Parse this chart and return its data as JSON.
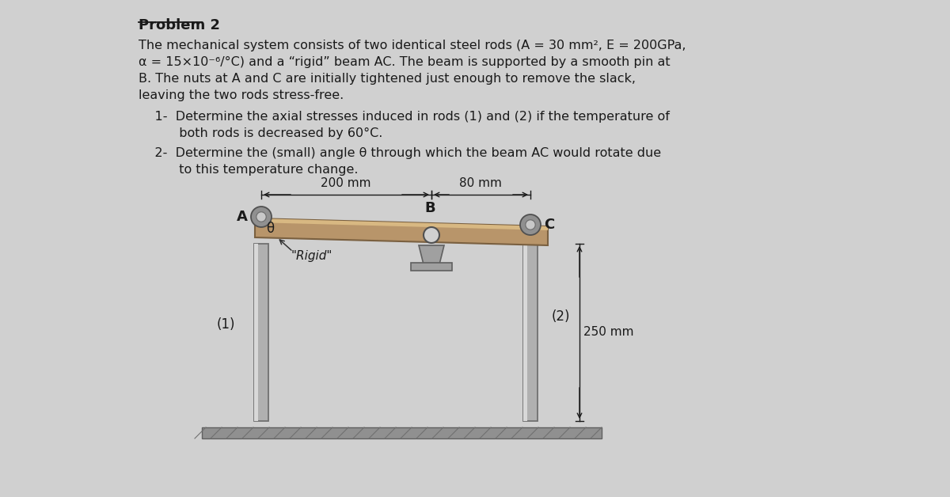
{
  "title": "Problem 2",
  "bg_color": "#d0d0d0",
  "text_color": "#1a1a1a",
  "para1_lines": [
    "The mechanical system consists of two identical steel rods (A = 30 mm², E = 200GPa,",
    "α = 15×10⁻⁶/°C) and a “rigid” beam AC. The beam is supported by a smooth pin at",
    "B. The nuts at A and C are initially tightened just enough to remove the slack,",
    "leaving the two rods stress-free."
  ],
  "item1_lines": [
    "    1-  Determine the axial stresses induced in rods (1) and (2) if the temperature of",
    "          both rods is decreased by 60°C."
  ],
  "item2_lines": [
    "    2-  Determine the (small) angle θ through which the beam AC would rotate due",
    "          to this temperature change."
  ],
  "label_A": "A",
  "label_B": "B",
  "label_C": "C",
  "label_theta": "θ",
  "label_rigid": "\"Rigid\"",
  "label_rod1": "(1)",
  "label_rod2": "(2)",
  "label_250": "250 mm",
  "label_200": "200 mm",
  "label_80": "80 mm"
}
